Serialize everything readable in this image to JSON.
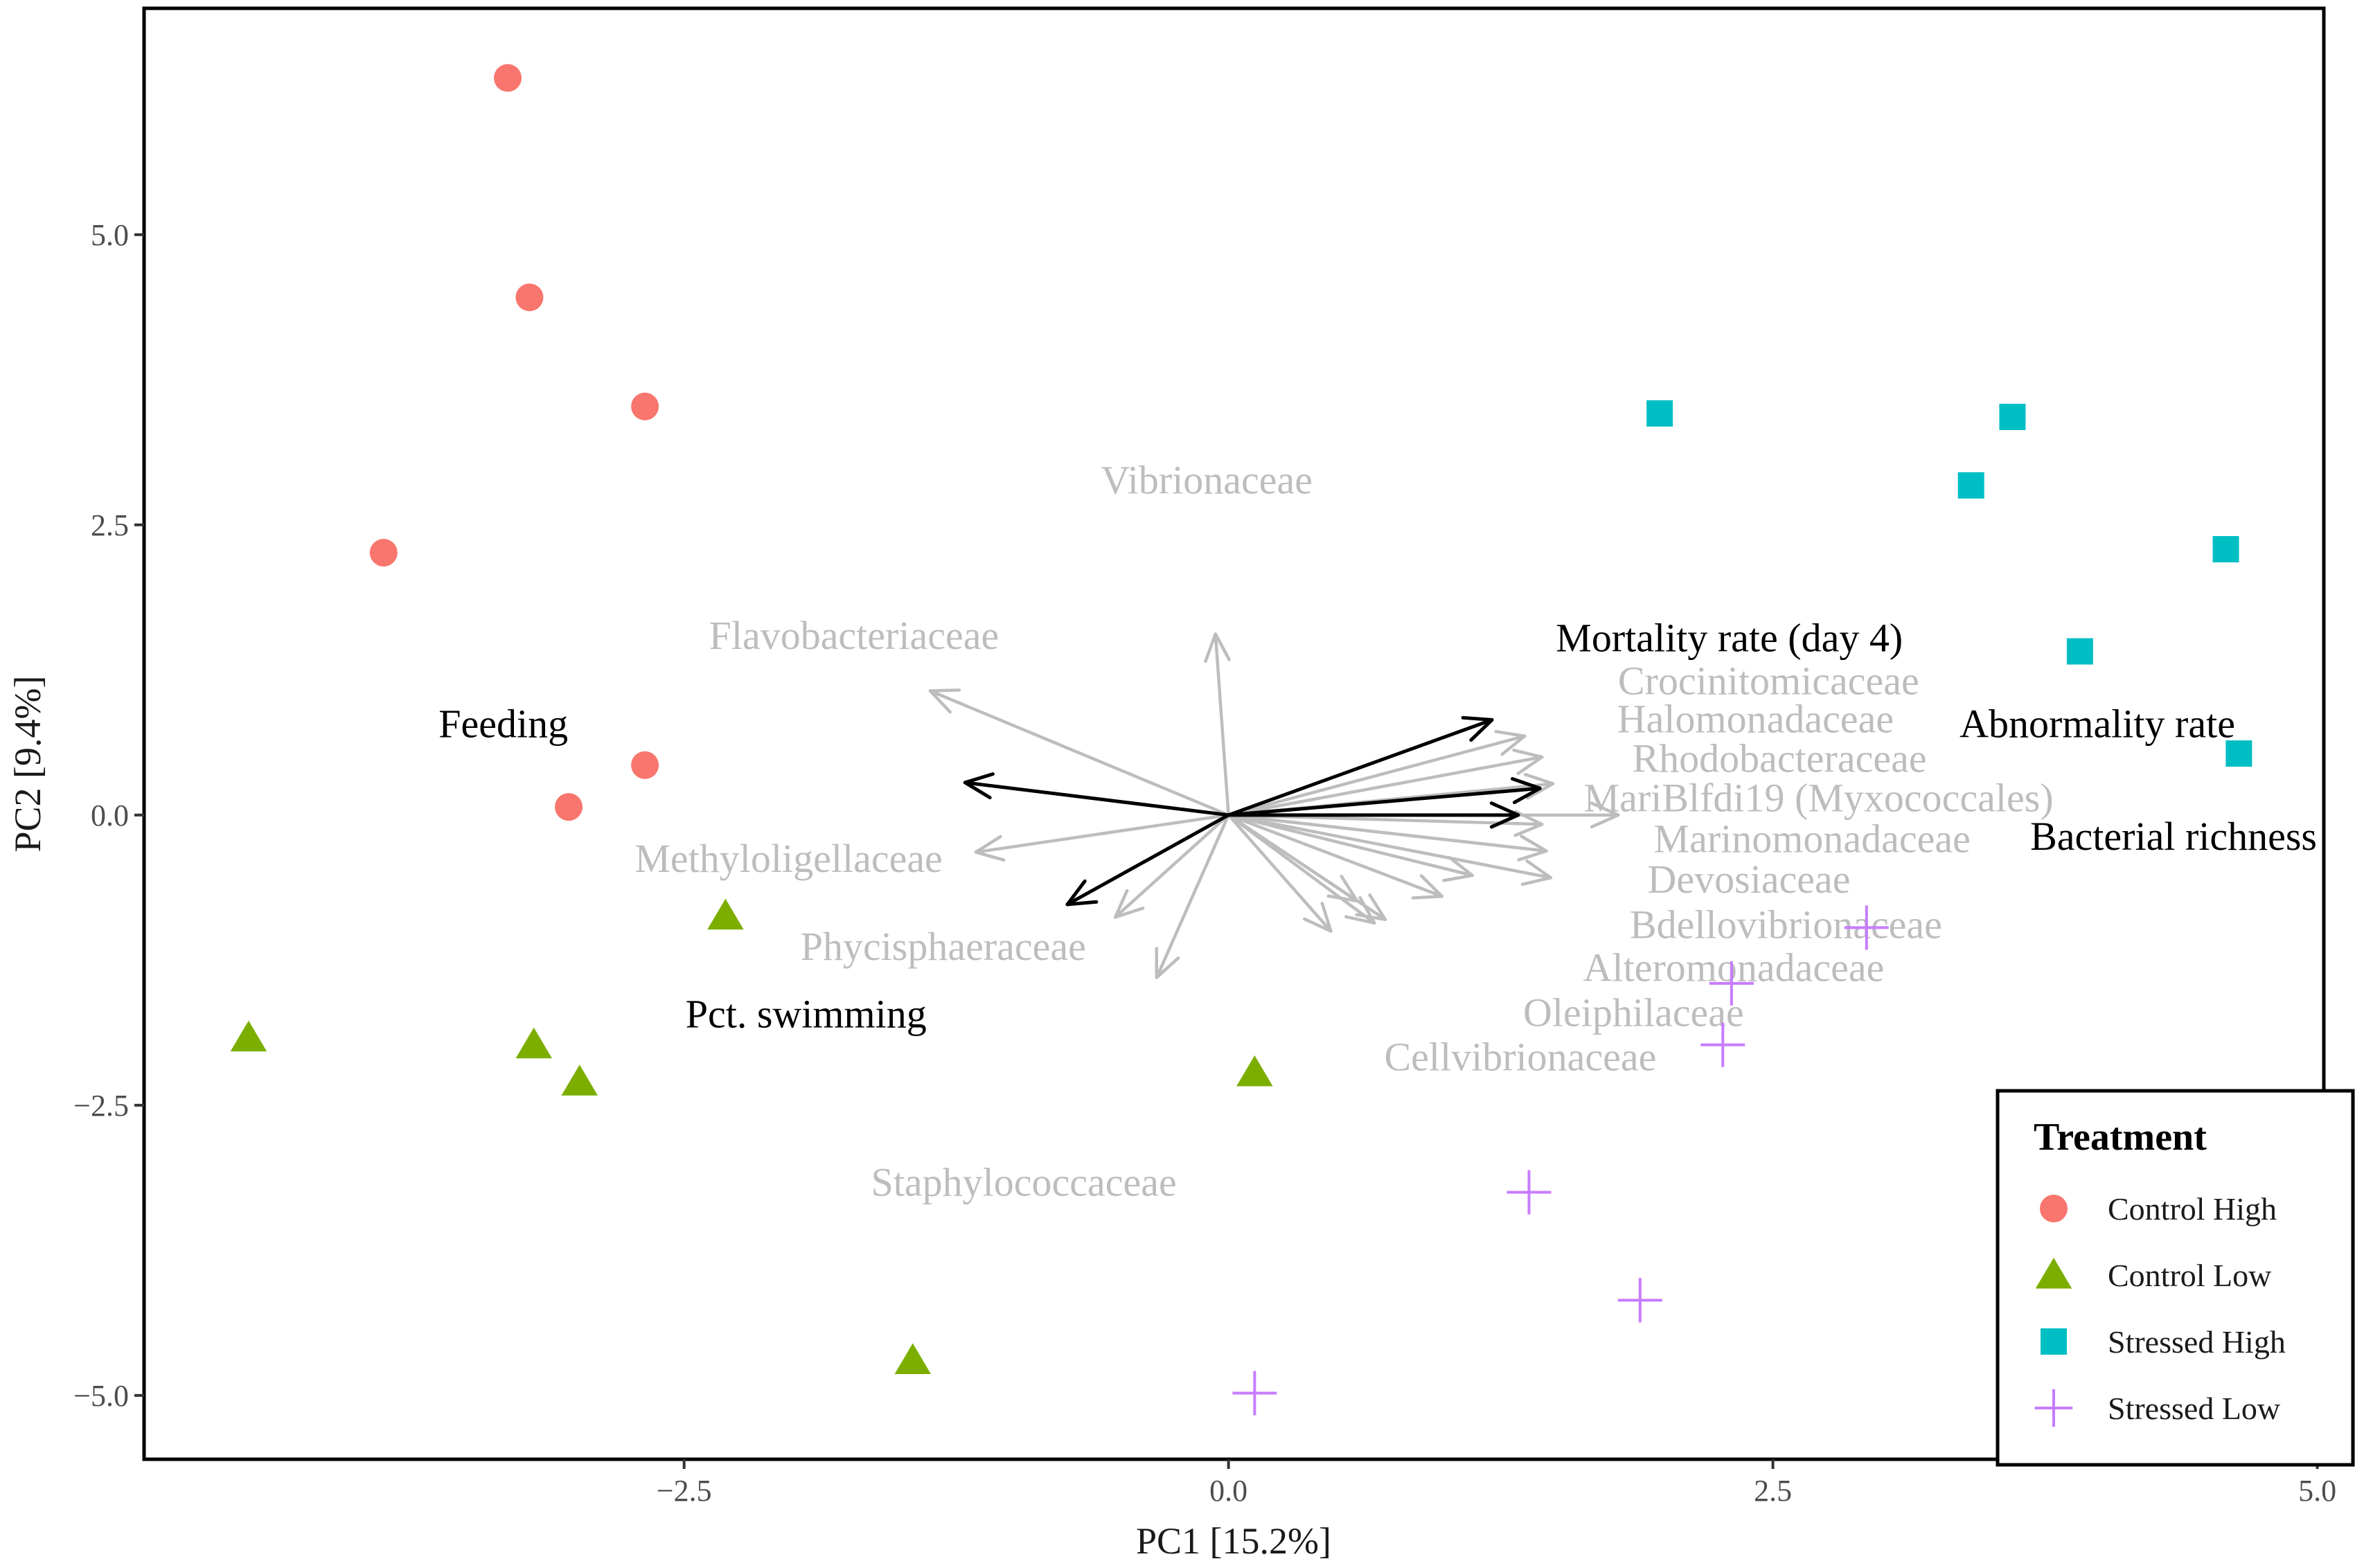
{
  "chart_data": {
    "type": "scatter",
    "title": "",
    "xlabel": "PC1   [15.2%]",
    "ylabel": "PC2   [9.4%]",
    "xlim": [
      -4.98,
      5.03
    ],
    "ylim": [
      -5.55,
      6.95
    ],
    "x_ticks": [
      {
        "value": -2.5,
        "label": "−2.5"
      },
      {
        "value": 0.0,
        "label": "0.0"
      },
      {
        "value": 2.5,
        "label": "2.5"
      },
      {
        "value": 5.0,
        "label": "5.0"
      }
    ],
    "y_ticks": [
      {
        "value": -5.0,
        "label": "−5.0"
      },
      {
        "value": -2.5,
        "label": "−2.5"
      },
      {
        "value": 0.0,
        "label": "0.0"
      },
      {
        "value": 2.5,
        "label": "2.5"
      },
      {
        "value": 5.0,
        "label": "5.0"
      }
    ],
    "grid": false,
    "legend": {
      "title": "Treatment",
      "position": "bottom-right",
      "entries": [
        "Control High",
        "Control Low",
        "Stressed High",
        "Stressed Low"
      ]
    },
    "series": [
      {
        "name": "Control High",
        "shape": "circle",
        "color": "#F8766D",
        "points": [
          [
            -3.31,
            6.35
          ],
          [
            -3.21,
            4.46
          ],
          [
            -2.68,
            3.52
          ],
          [
            -3.88,
            2.26
          ],
          [
            -2.68,
            0.43
          ],
          [
            -3.03,
            0.07
          ]
        ]
      },
      {
        "name": "Control Low",
        "shape": "triangle",
        "color": "#7CAE00",
        "points": [
          [
            -2.31,
            -0.87
          ],
          [
            -4.5,
            -1.92
          ],
          [
            -3.19,
            -1.98
          ],
          [
            -2.98,
            -2.3
          ],
          [
            0.12,
            -2.22
          ],
          [
            -1.45,
            -4.7
          ]
        ]
      },
      {
        "name": "Stressed High",
        "shape": "square",
        "color": "#00BFC4",
        "points": [
          [
            1.98,
            3.46
          ],
          [
            3.6,
            3.43
          ],
          [
            3.41,
            2.84
          ],
          [
            4.58,
            2.29
          ],
          [
            3.91,
            1.41
          ],
          [
            4.64,
            0.53
          ]
        ]
      },
      {
        "name": "Stressed Low",
        "shape": "cross",
        "color": "#C77CFF",
        "points": [
          [
            2.93,
            -0.97
          ],
          [
            2.31,
            -1.45
          ],
          [
            2.27,
            -1.98
          ],
          [
            1.38,
            -3.25
          ],
          [
            1.89,
            -4.18
          ],
          [
            0.12,
            -4.98
          ]
        ]
      }
    ],
    "taxa_arrows": [
      {
        "name": "Vibrionaceae",
        "end": [
          -0.06,
          1.56
        ],
        "label_at": [
          -0.1,
          2.89
        ]
      },
      {
        "name": "Flavobacteriaceae",
        "end": [
          -1.37,
          1.07
        ],
        "label_at": [
          -1.72,
          1.55
        ]
      },
      {
        "name": "Crocinitomicaceae",
        "end": [
          1.36,
          0.68
        ],
        "label_at": [
          2.48,
          1.16
        ]
      },
      {
        "name": "Halomonadaceae",
        "end": [
          1.44,
          0.5
        ],
        "label_at": [
          2.42,
          0.83
        ]
      },
      {
        "name": "Rhodobacteraceae",
        "end": [
          1.49,
          0.27
        ],
        "label_at": [
          2.53,
          0.49
        ]
      },
      {
        "name": "MariBlfdi19 (Myxococcales)",
        "end": [
          1.79,
          0.0
        ],
        "label_at": [
          2.71,
          0.15
        ]
      },
      {
        "name": "Marinomonadaceae",
        "end": [
          1.46,
          -0.31
        ],
        "label_at": [
          2.68,
          -0.2
        ]
      },
      {
        "name": "Devosiaceae",
        "end": [
          1.48,
          -0.54
        ],
        "label_at": [
          2.39,
          -0.55
        ]
      },
      {
        "name": "Bdellovibrionaceae",
        "end": [
          0.98,
          -0.7
        ],
        "label_at": [
          2.56,
          -0.94
        ]
      },
      {
        "name": "Alteromonadaceae",
        "end": [
          0.72,
          -0.9
        ],
        "label_at": [
          2.32,
          -1.31
        ]
      },
      {
        "name": "Oleiphilaceae",
        "end": [
          0.67,
          -0.93
        ],
        "label_at": [
          1.86,
          -1.7
        ]
      },
      {
        "name": "Cellvibrionaceae",
        "end": [
          0.47,
          -1.0
        ],
        "label_at": [
          1.34,
          -2.08
        ]
      },
      {
        "name": "Methyloligellaceae",
        "end": [
          -1.16,
          -0.32
        ],
        "label_at": [
          -2.02,
          -0.37
        ]
      },
      {
        "name": "Phycisphaeraceae",
        "end": [
          -0.52,
          -0.88
        ],
        "label_at": [
          -1.31,
          -1.13
        ]
      },
      {
        "name": "Staphylococcaceae",
        "end": [
          -0.33,
          -1.4
        ],
        "label_at": [
          -0.94,
          -3.16
        ]
      }
    ],
    "taxa_arrow_extra_ends": [
      [
        0.59,
        -0.74
      ],
      [
        1.12,
        -0.52
      ],
      [
        1.44,
        -0.08
      ]
    ],
    "variable_arrows": [
      {
        "name": "Mortality rate (day 4)",
        "end": [
          1.21,
          0.82
        ],
        "label_at": [
          2.3,
          1.53
        ]
      },
      {
        "name": "Abnormality rate",
        "end": [
          1.43,
          0.23
        ],
        "label_at": [
          3.99,
          0.79
        ]
      },
      {
        "name": "Bacterial richness",
        "end": [
          1.33,
          0.0
        ],
        "label_at": [
          4.34,
          -0.18
        ]
      },
      {
        "name": "Feeding",
        "end": [
          -1.21,
          0.28
        ],
        "label_at": [
          -3.33,
          0.79
        ]
      },
      {
        "name": "Pct. swimming",
        "end": [
          -0.74,
          -0.77
        ],
        "label_at": [
          -1.94,
          -1.71
        ]
      }
    ]
  }
}
